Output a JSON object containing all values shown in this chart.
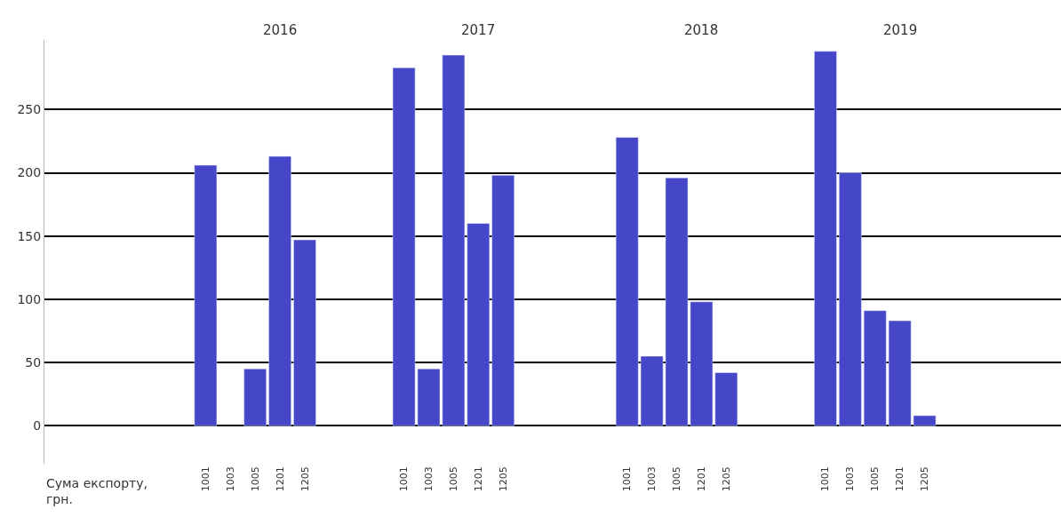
{
  "chart_data": {
    "type": "bar",
    "annotations": [
      "2016",
      "2017",
      "2018",
      "2019",
      "Сума експорту,\nгрн."
    ],
    "categories": [
      null,
      null,
      null,
      null,
      null,
      null,
      "1001",
      "1003",
      "1005",
      "1201",
      "1205",
      null,
      null,
      null,
      "1001",
      "1003",
      "1005",
      "1201",
      "1205",
      null,
      null,
      null,
      null,
      "1001",
      "1003",
      "1005",
      "1201",
      "1205",
      null,
      null,
      null,
      "1001",
      "1003",
      "1005",
      "1201",
      "1205",
      null,
      null,
      null,
      null,
      null
    ],
    "series": [
      {
        "color": "#4646c8",
        "values": [
          null,
          null,
          null,
          null,
          null,
          null,
          206,
          null,
          45,
          213,
          147,
          null,
          null,
          null,
          283,
          45,
          293,
          160,
          198,
          null,
          null,
          null,
          null,
          228,
          55,
          196,
          98,
          42,
          null,
          null,
          null,
          296,
          200,
          91,
          83,
          8,
          null,
          null,
          null,
          null,
          null
        ]
      }
    ],
    "ylim": [
      -30,
      305
    ],
    "yticks": [
      0,
      50,
      100,
      150,
      200,
      250
    ],
    "grid": "y"
  }
}
